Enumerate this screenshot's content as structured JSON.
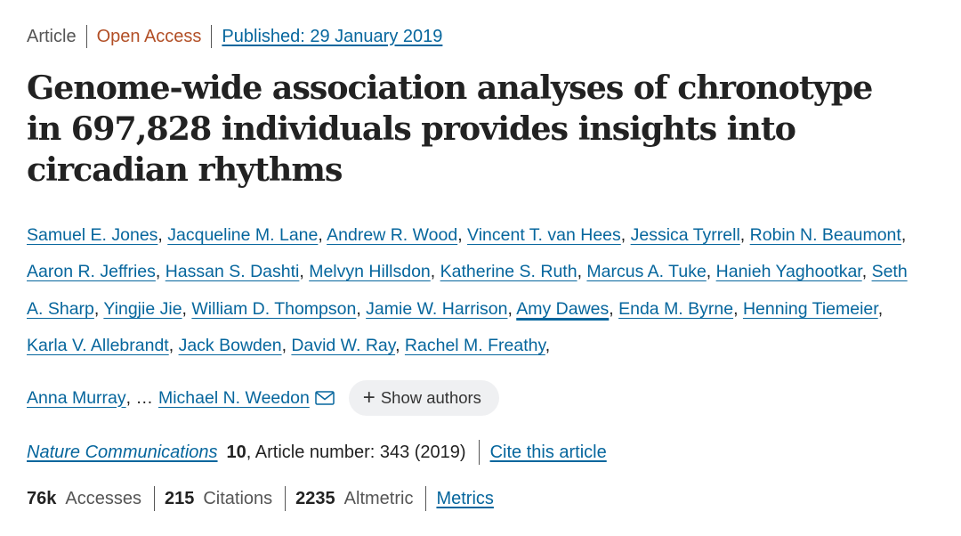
{
  "meta": {
    "type": "Article",
    "access": "Open Access",
    "published": "Published: 29 January 2019"
  },
  "title": "Genome-wide association analyses of chronotype in 697,828 individuals provides insights into circadian rhythms",
  "authors": [
    "Samuel E. Jones",
    "Jacqueline M. Lane",
    "Andrew R. Wood",
    "Vincent T. van Hees",
    "Jessica Tyrrell",
    "Robin N. Beaumont",
    "Aaron R. Jeffries",
    "Hassan S. Dashti",
    "Melvyn Hillsdon",
    "Katherine S. Ruth",
    "Marcus A. Tuke",
    "Hanieh Yaghootkar",
    "Seth A. Sharp",
    "Yingjie Jie",
    "William D. Thompson",
    "Jamie W. Harrison",
    "Amy Dawes",
    "Enda M. Byrne",
    "Henning Tiemeier",
    "Karla V. Allebrandt",
    "Jack Bowden",
    "David W. Ray",
    "Rachel M. Freathy",
    "Anna Murray"
  ],
  "authors_ellipsis": "…",
  "corresponding_author": "Michael N. Weedon",
  "show_authors": {
    "icon": "plus-icon",
    "label": "Show authors"
  },
  "journal": {
    "name": "Nature Communications",
    "volume": "10",
    "details": ", Article number: 343 (2019)",
    "cite_label": "Cite this article"
  },
  "metrics": {
    "accesses_value": "76k",
    "accesses_label": "Accesses",
    "citations_value": "215",
    "citations_label": "Citations",
    "altmetric_value": "2235",
    "altmetric_label": "Altmetric",
    "metrics_link": "Metrics"
  },
  "colors": {
    "link": "#06669d",
    "open_access": "#b24f26",
    "text": "#222222"
  }
}
